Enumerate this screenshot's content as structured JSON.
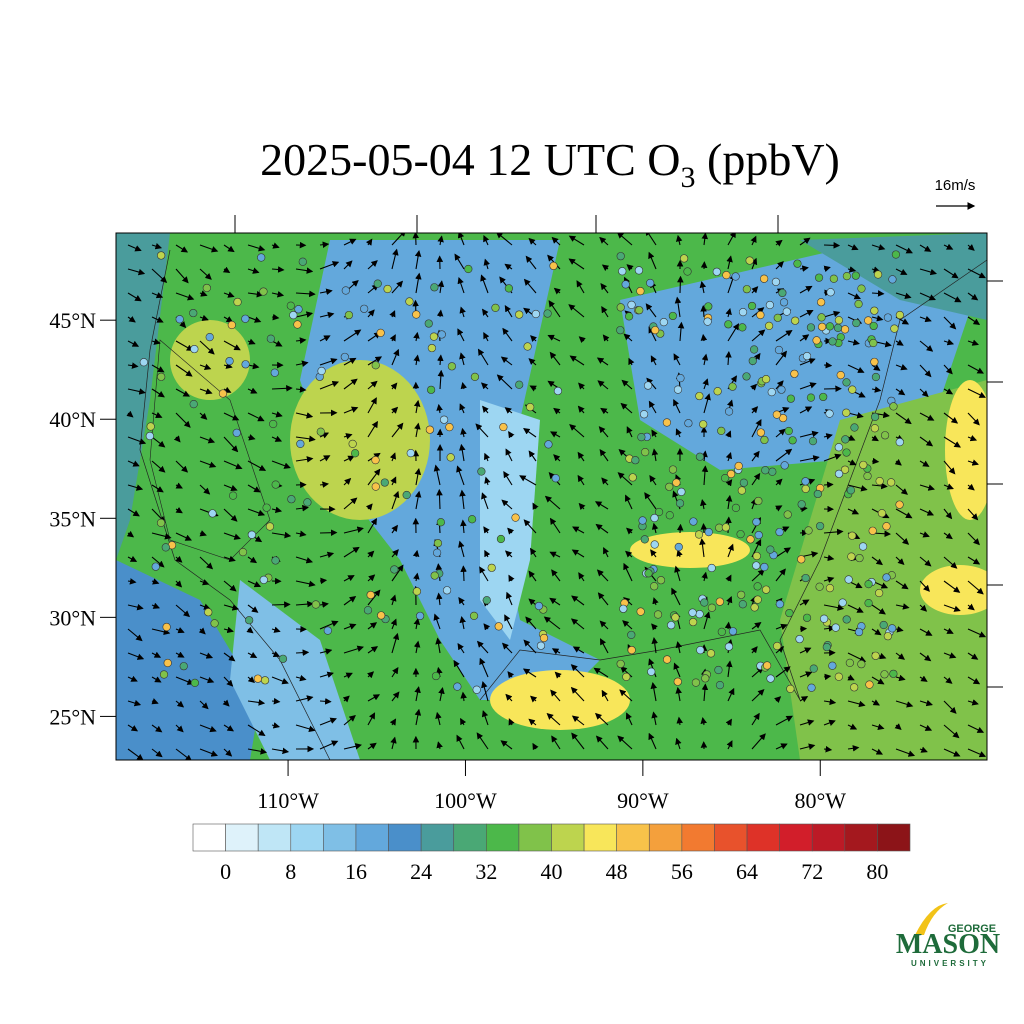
{
  "title": {
    "main": "2025-05-04 12 UTC O",
    "sub": "3",
    "unit": " (ppbV)"
  },
  "wind_reference": "16m/s",
  "map": {
    "lat_range": [
      22.8,
      49.4
    ],
    "lon_range": [
      -119.7,
      -70.6
    ],
    "lat_ticks": [
      {
        "value": 45,
        "label": "45°N"
      },
      {
        "value": 40,
        "label": "40°N"
      },
      {
        "value": 35,
        "label": "35°N"
      },
      {
        "value": 30,
        "label": "30°N"
      },
      {
        "value": 25,
        "label": "25°N"
      }
    ],
    "lon_ticks": [
      {
        "value": -110,
        "label": "110°W"
      },
      {
        "value": -100,
        "label": "100°W"
      },
      {
        "value": -90,
        "label": "90°W"
      },
      {
        "value": -80,
        "label": "80°W"
      }
    ]
  },
  "colorbar": {
    "range": [
      -4,
      84
    ],
    "colors": [
      "#ffffff",
      "#def2fa",
      "#bfe6f6",
      "#9dd6f2",
      "#7fbfe6",
      "#63a8dc",
      "#4a8fca",
      "#4a9c9c",
      "#4aa875",
      "#4cb84a",
      "#80c24a",
      "#bdd44e",
      "#f8e65a",
      "#f8c24a",
      "#f4a03c",
      "#f27a30",
      "#e8522c",
      "#de3228",
      "#d21e2a",
      "#bc1a26",
      "#a4181e",
      "#8c1418"
    ],
    "ticks": [
      0,
      8,
      16,
      24,
      32,
      40,
      48,
      56,
      64,
      72,
      80
    ]
  },
  "logo": {
    "top": "GEORGE",
    "name": "MASON",
    "bottom": "UNIVERSITY"
  }
}
